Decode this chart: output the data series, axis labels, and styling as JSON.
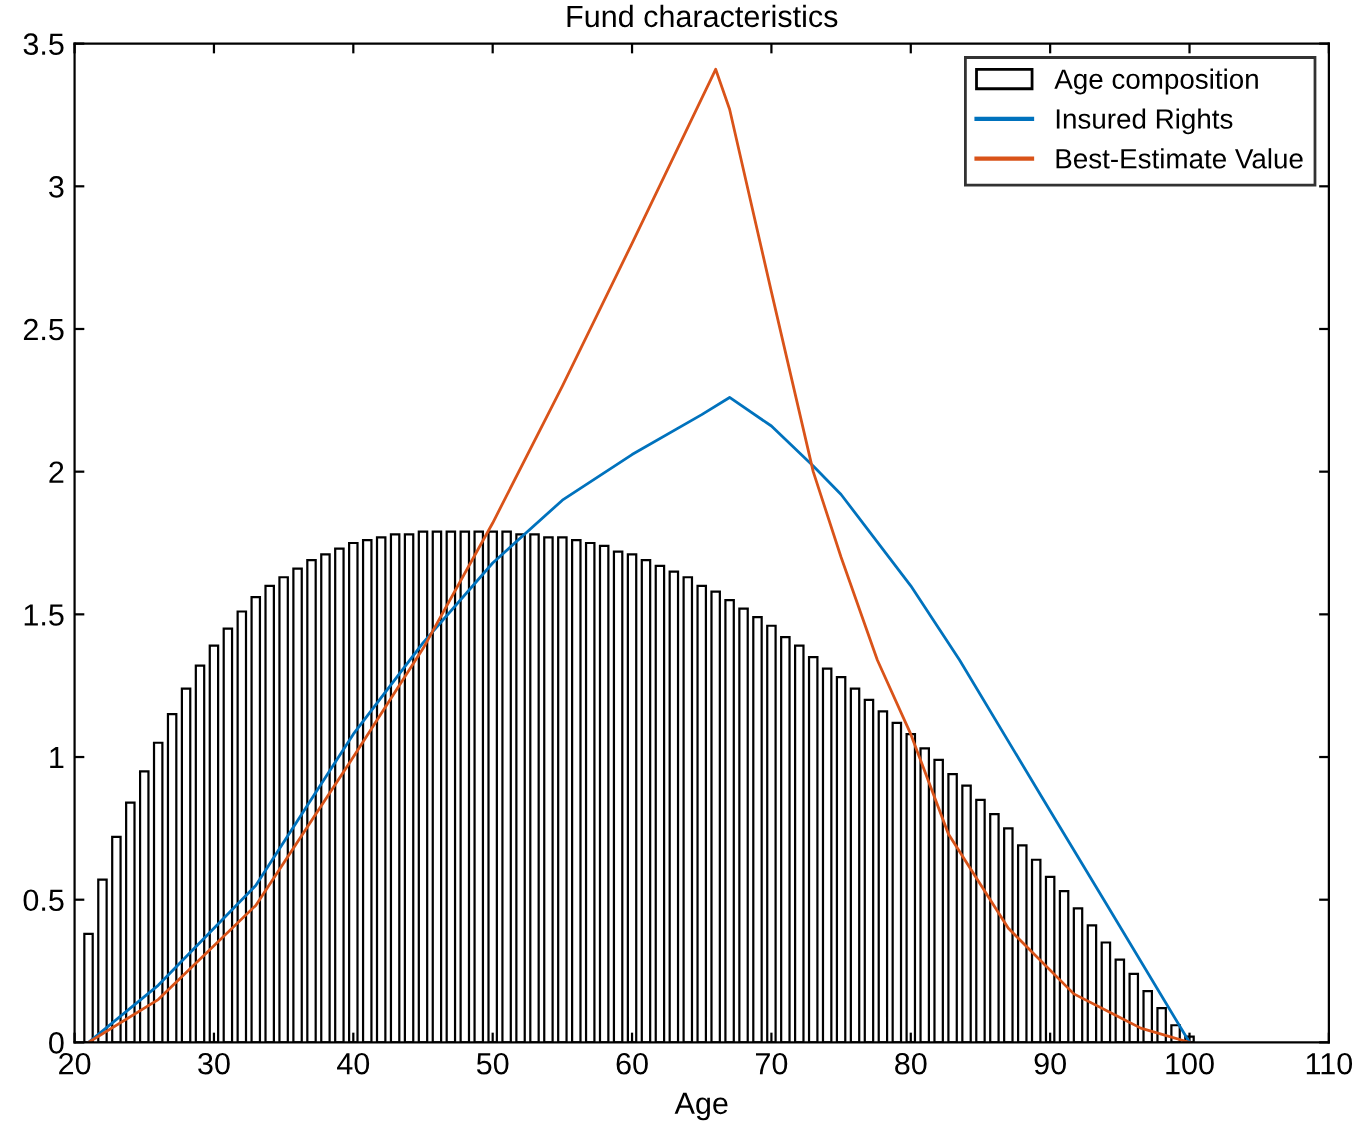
{
  "chart_data": {
    "type": "bar",
    "title": "Fund characteristics",
    "xlabel": "Age",
    "x": [
      21,
      22,
      23,
      24,
      25,
      26,
      27,
      28,
      29,
      30,
      31,
      32,
      33,
      34,
      35,
      36,
      37,
      38,
      39,
      40,
      41,
      42,
      43,
      44,
      45,
      46,
      47,
      48,
      49,
      50,
      51,
      52,
      53,
      54,
      55,
      56,
      57,
      58,
      59,
      60,
      61,
      62,
      63,
      64,
      65,
      66,
      67,
      68,
      69,
      70,
      71,
      72,
      73,
      74,
      75,
      76,
      77,
      78,
      79,
      80,
      81,
      82,
      83,
      84,
      85,
      86,
      87,
      88,
      89,
      90,
      91,
      92,
      93,
      94,
      95,
      96,
      97,
      98,
      99,
      100
    ],
    "series": [
      {
        "name": "Age composition",
        "color": "#ffffff",
        "values": [
          0.38,
          0.57,
          0.72,
          0.84,
          0.95,
          1.05,
          1.15,
          1.24,
          1.32,
          1.39,
          1.45,
          1.51,
          1.56,
          1.6,
          1.63,
          1.66,
          1.69,
          1.71,
          1.73,
          1.75,
          1.76,
          1.77,
          1.78,
          1.78,
          1.79,
          1.79,
          1.79,
          1.79,
          1.79,
          1.79,
          1.79,
          1.78,
          1.78,
          1.77,
          1.77,
          1.76,
          1.75,
          1.74,
          1.72,
          1.71,
          1.69,
          1.67,
          1.65,
          1.63,
          1.6,
          1.58,
          1.55,
          1.52,
          1.49,
          1.46,
          1.42,
          1.39,
          1.35,
          1.31,
          1.28,
          1.24,
          1.2,
          1.16,
          1.12,
          1.08,
          1.03,
          0.99,
          0.94,
          0.9,
          0.85,
          0.8,
          0.75,
          0.69,
          0.64,
          0.58,
          0.53,
          0.47,
          0.41,
          0.35,
          0.29,
          0.24,
          0.18,
          0.12,
          0.06,
          0.02
        ]
      },
      {
        "name": "Insured Rights",
        "type": "line",
        "color": "#0072bd",
        "x": [
          21,
          26,
          33,
          40,
          45,
          50,
          55,
          60,
          65,
          67,
          70,
          73,
          75,
          80,
          83.5,
          89.4,
          94.1,
          100
        ],
        "values": [
          0,
          0.2,
          0.55,
          1.08,
          1.4,
          1.68,
          1.9,
          2.06,
          2.2,
          2.26,
          2.16,
          2.02,
          1.92,
          1.6,
          1.34,
          0.86,
          0.48,
          0
        ]
      },
      {
        "name": "Best-Estimate Value",
        "type": "line",
        "color": "#d95319",
        "x": [
          21,
          26,
          33,
          40,
          45,
          50,
          55,
          60,
          66,
          67,
          70,
          73,
          75,
          77.6,
          80,
          82.7,
          87,
          91.7,
          96.5,
          100
        ],
        "values": [
          0,
          0.15,
          0.48,
          1.0,
          1.38,
          1.82,
          2.3,
          2.8,
          3.41,
          3.27,
          2.63,
          2.0,
          1.7,
          1.34,
          1.08,
          0.73,
          0.4,
          0.17,
          0.05,
          0
        ]
      }
    ],
    "xlim": [
      20,
      110
    ],
    "xticks": [
      20,
      30,
      40,
      50,
      60,
      70,
      80,
      90,
      100,
      110
    ],
    "ylim": [
      0,
      3.5
    ],
    "yticks": [
      0,
      0.5,
      1,
      1.5,
      2,
      2.5,
      3,
      3.5
    ],
    "grid": false,
    "legend": "top right"
  }
}
